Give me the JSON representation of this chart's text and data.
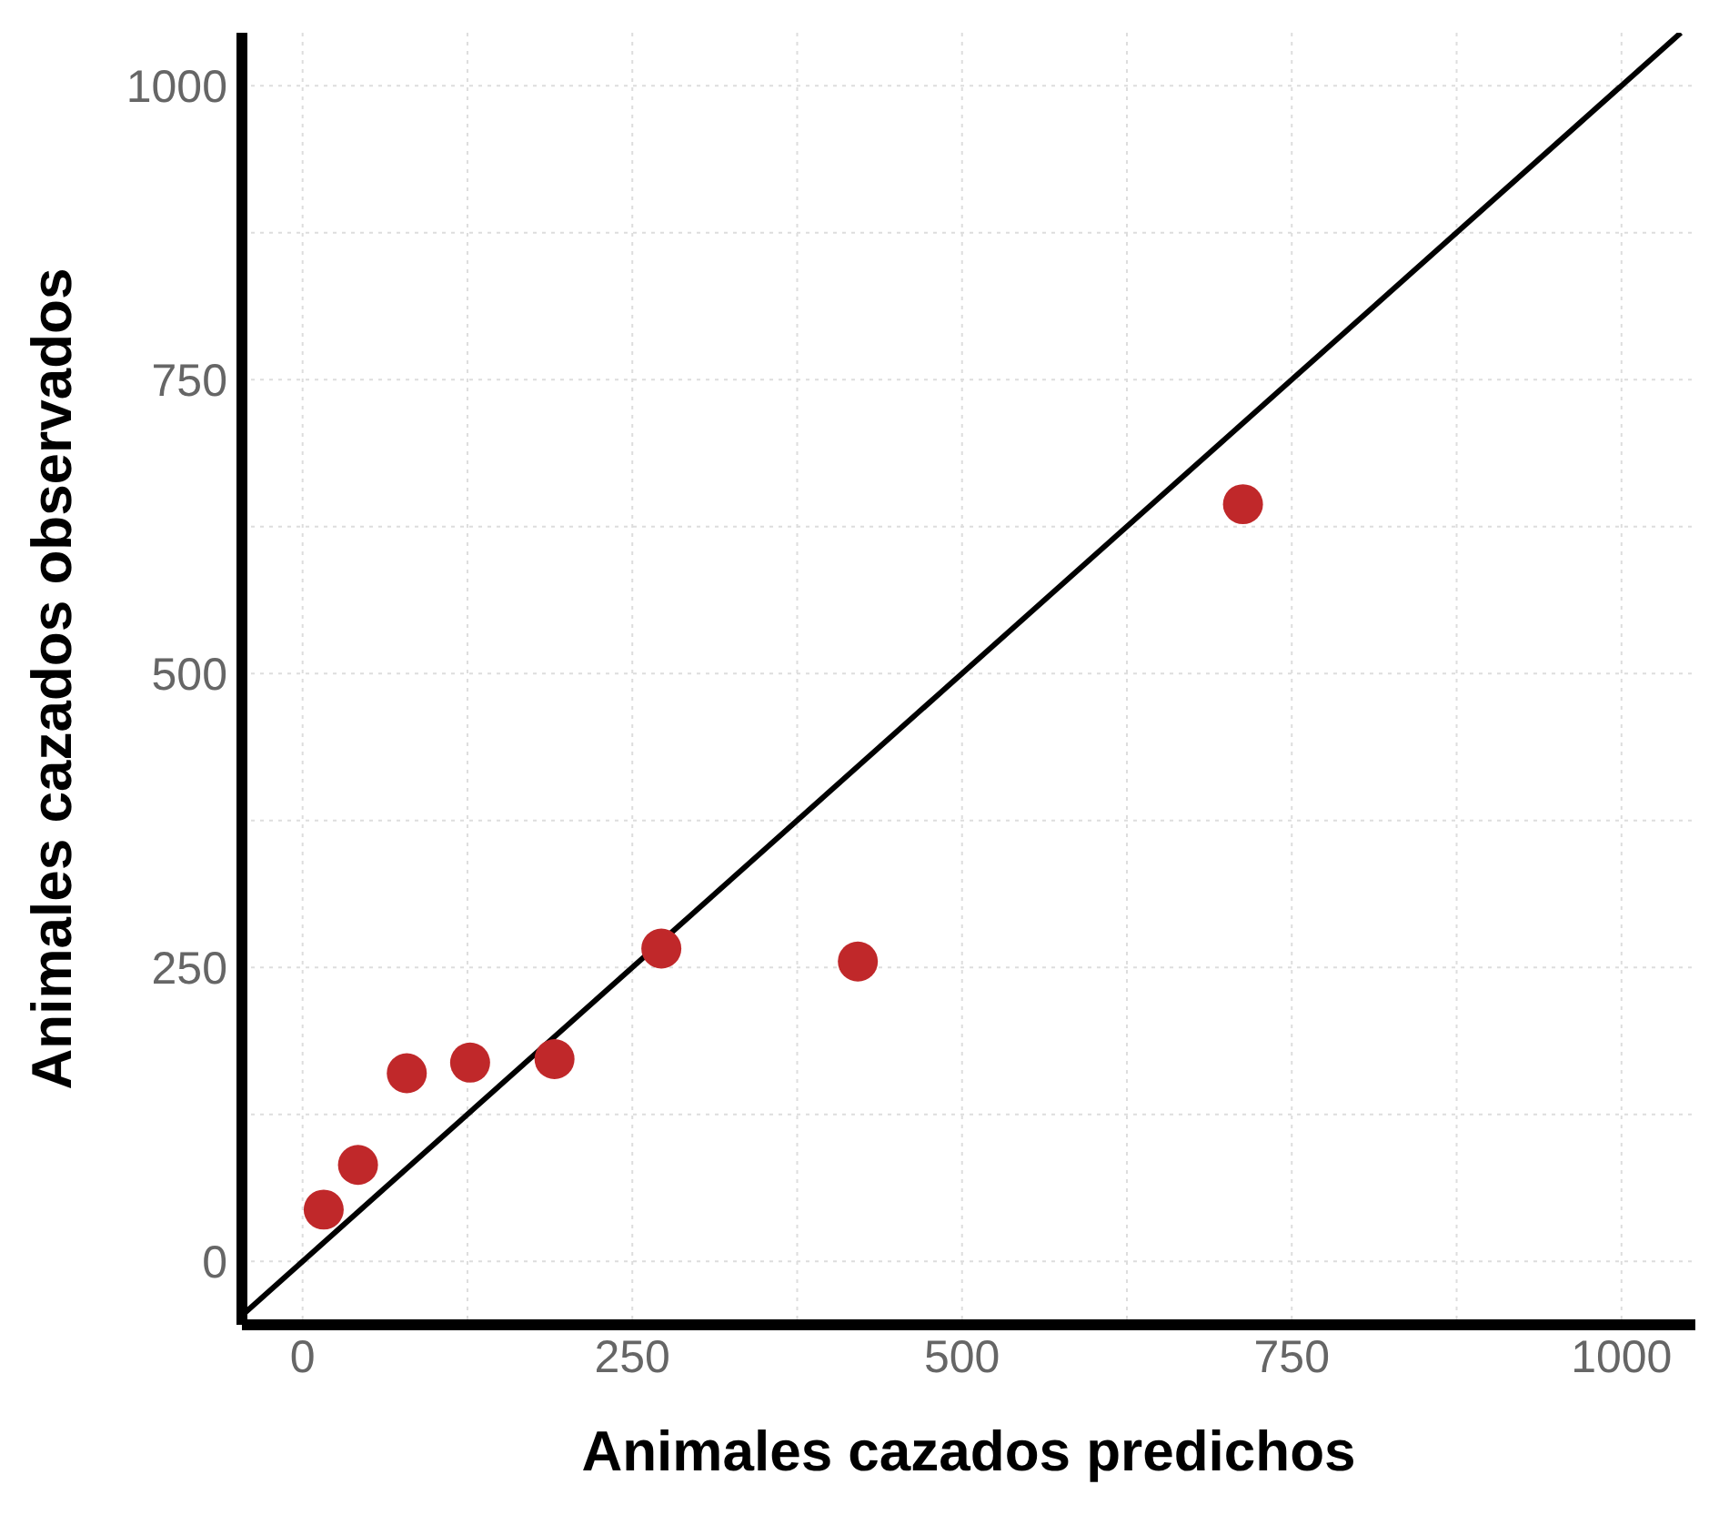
{
  "chart_data": {
    "type": "scatter",
    "xlabel": "Animales cazados predichos",
    "ylabel": "Animales cazados observados",
    "xlim": [
      -46,
      1056
    ],
    "ylim": [
      -54,
      1045
    ],
    "xticks": [
      0,
      {
        "value": 125,
        "label": null
      },
      250,
      {
        "value": 375,
        "label": null
      },
      500,
      {
        "value": 625,
        "label": null
      },
      750,
      {
        "value": 875,
        "label": null
      },
      1000
    ],
    "yticks": [
      0,
      {
        "value": 125,
        "label": null
      },
      250,
      {
        "value": 375,
        "label": null
      },
      500,
      {
        "value": 625,
        "label": null
      },
      750,
      {
        "value": 875,
        "label": null
      },
      1000
    ],
    "grid": true,
    "series": [
      {
        "marker": "circle",
        "color": "#c0282a",
        "x": [
          16,
          42,
          79,
          127,
          191,
          272,
          421,
          713
        ],
        "values": [
          44,
          82,
          160,
          169,
          172,
          266,
          255,
          644
        ]
      },
      {
        "type": "line",
        "color": "#000000",
        "x": [
          -46,
          1045
        ],
        "values": [
          -46,
          1045
        ]
      }
    ]
  }
}
